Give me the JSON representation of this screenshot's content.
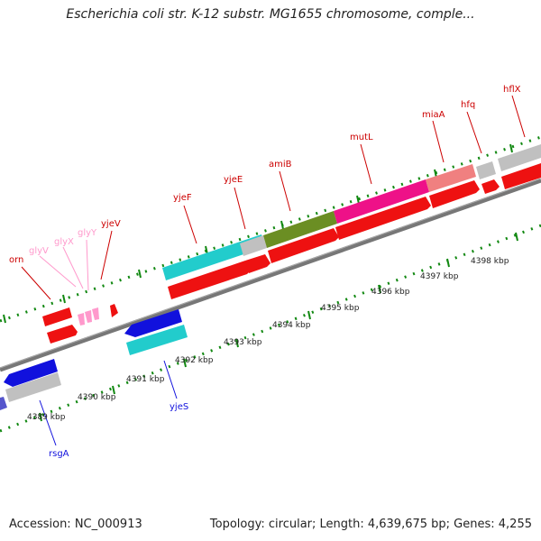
{
  "title": "Escherichia coli str. K-12 substr. MG1655 chromosome, comple...",
  "footer": {
    "accession": "Accession: NC_000913",
    "summary": "Topology: circular; Length: 4,639,675 bp; Genes: 4,255"
  },
  "colors": {
    "forward_red": "#ee1111",
    "reverse_blue": "#1111dd",
    "grey": "#c0c0c0",
    "cyan": "#22cccc",
    "olive": "#6b8e23",
    "magenta": "#ee1188",
    "pink": "#f08080",
    "trna_pink": "#ff99cc",
    "tick_green": "#118811",
    "backbone": "#777777"
  },
  "diagram": {
    "kbp_labels": [
      {
        "id": "4389",
        "text": "4389 kbp"
      },
      {
        "id": "4390",
        "text": "4390 kbp"
      },
      {
        "id": "4391",
        "text": "4391 kbp"
      },
      {
        "id": "4392",
        "text": "4392 kbp"
      },
      {
        "id": "4393",
        "text": "4393 kbp"
      },
      {
        "id": "4394",
        "text": "4394 kbp"
      },
      {
        "id": "4395",
        "text": "4395 kbp"
      },
      {
        "id": "4396",
        "text": "4396 kbp"
      },
      {
        "id": "4397",
        "text": "4397 kbp"
      },
      {
        "id": "4398",
        "text": "4398 kbp"
      }
    ],
    "gene_labels": [
      {
        "id": "orn",
        "text": "orn",
        "strand": "forward"
      },
      {
        "id": "glyV",
        "text": "glyV",
        "strand": "trna"
      },
      {
        "id": "glyX",
        "text": "glyX",
        "strand": "trna"
      },
      {
        "id": "glyY",
        "text": "glyY",
        "strand": "trna"
      },
      {
        "id": "yjeV",
        "text": "yjeV",
        "strand": "forward"
      },
      {
        "id": "yjeF",
        "text": "yjeF",
        "strand": "forward"
      },
      {
        "id": "yjeE",
        "text": "yjeE",
        "strand": "forward"
      },
      {
        "id": "amiB",
        "text": "amiB",
        "strand": "forward"
      },
      {
        "id": "mutL",
        "text": "mutL",
        "strand": "forward"
      },
      {
        "id": "miaA",
        "text": "miaA",
        "strand": "forward"
      },
      {
        "id": "hfq",
        "text": "hfq",
        "strand": "forward"
      },
      {
        "id": "hflX",
        "text": "hflX",
        "strand": "forward"
      },
      {
        "id": "yjeS",
        "text": "yjeS",
        "strand": "reverse"
      },
      {
        "id": "rsgA",
        "text": "rsgA",
        "strand": "reverse"
      }
    ]
  }
}
